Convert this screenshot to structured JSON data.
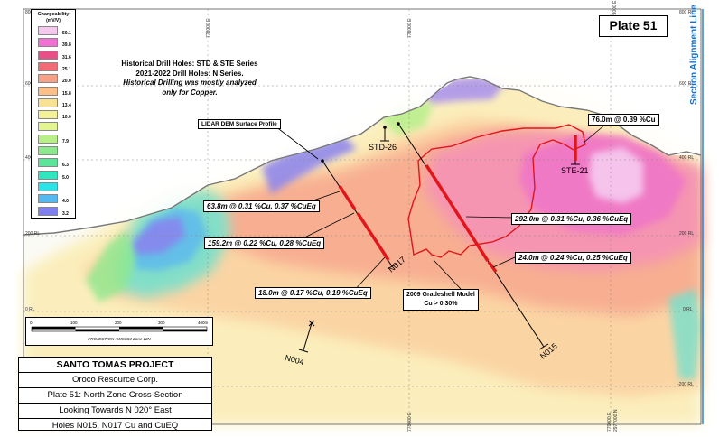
{
  "plate_label": "Plate 51",
  "section_line_label": "Section Alignment Line",
  "legend": {
    "title": "Chargeability",
    "unit": "(mV/V)",
    "entries": [
      {
        "value": "50.1",
        "color": "#f7c8ef"
      },
      {
        "value": "39.8",
        "color": "#f36fd3"
      },
      {
        "value": "31.6",
        "color": "#e94f86"
      },
      {
        "value": "25.1",
        "color": "#f06c77"
      },
      {
        "value": "20.0",
        "color": "#f7a085"
      },
      {
        "value": "15.8",
        "color": "#fbbf87"
      },
      {
        "value": "13.4",
        "color": "#f7e192"
      },
      {
        "value": "10.0",
        "color": "#f5f296"
      },
      {
        "value": "",
        "color": "#e3f590"
      },
      {
        "value": "7.9",
        "color": "#b8ef89"
      },
      {
        "value": "",
        "color": "#8be98c"
      },
      {
        "value": "6.3",
        "color": "#5ce59a"
      },
      {
        "value": "5.0",
        "color": "#30e6c0"
      },
      {
        "value": "",
        "color": "#29e5ea"
      },
      {
        "value": "4.0",
        "color": "#54b9f0"
      },
      {
        "value": "3.2",
        "color": "#7f7ff0"
      }
    ]
  },
  "notes": {
    "line1": "Historical Drill Holes: STD & STE Series",
    "line2": "2021-2022 Drill Holes: N Series.",
    "line3": "Historical Drilling was mostly analyzed",
    "line4": "only for Copper."
  },
  "rl_labels": {
    "left": [
      "800 RL",
      "600 RL",
      "400 RL",
      "200 RL",
      "0 RL"
    ],
    "right": [
      "800 RL",
      "600 RL",
      "400 RL",
      "200 RL",
      "0 RL",
      "-200 RL"
    ]
  },
  "eastings": [
    "778000 E",
    "778000 E",
    "779000 E",
    "778000 E",
    "779000 E"
  ],
  "northing": "2977000 N",
  "callouts": {
    "lidar": "LIDAR DEM Surface Profile",
    "ste21": "76.0m @ 0.39 %Cu",
    "n017_1": "63.8m @ 0.31 %Cu, 0.37 %CuEq",
    "n017_2": "159.2m @ 0.22 %Cu, 0.28 %CuEq",
    "n017_3": "18.0m @ 0.17 %Cu, 0.19 %CuEq",
    "n015_1": "292.0m @ 0.31 %Cu, 0.36 %CuEq",
    "n015_2": "24.0m @ 0.24 %Cu, 0.25 %CuEq",
    "gradeshell_1": "2009 Gradeshell Model",
    "gradeshell_2": "Cu > 0.30%"
  },
  "holes": {
    "std26": "STD-26",
    "ste21": "STE-21",
    "n017": "N017",
    "n015": "N015",
    "n004": "N004"
  },
  "scale": {
    "ticks": [
      "0",
      "100",
      "200",
      "300",
      "400m"
    ],
    "projection": "PROJECTION : WGS84 Zone 12N"
  },
  "title_block": {
    "project": "SANTO TOMAS PROJECT",
    "company": "Oroco Resource Corp.",
    "line1": "Plate 51: North Zone Cross-Section",
    "line2": "Looking Towards N 020° East",
    "line3": "Holes N015, N017 Cu and CuEQ"
  }
}
